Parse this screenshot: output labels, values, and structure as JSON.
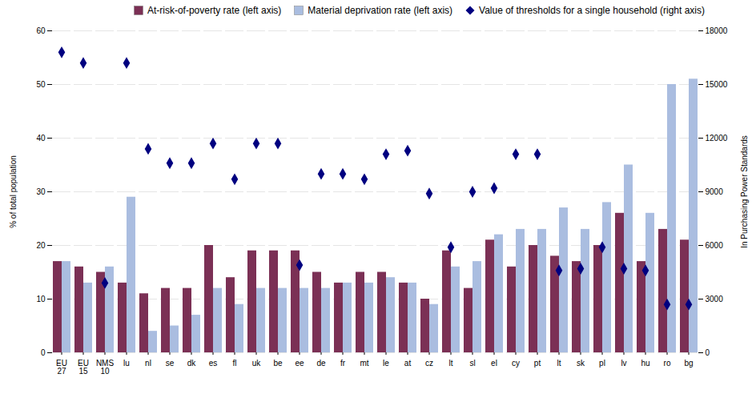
{
  "chart_data": {
    "type": "bar",
    "categories": [
      "EU\n27",
      "EU\n15",
      "NMS\n10",
      "lu",
      "nl",
      "se",
      "dk",
      "es",
      "fl",
      "uk",
      "be",
      "ee",
      "de",
      "fr",
      "mt",
      "le",
      "at",
      "cz",
      "lt",
      "sl",
      "el",
      "cy",
      "pt",
      "lt",
      "sk",
      "pl",
      "lv",
      "hu",
      "ro",
      "bg"
    ],
    "series": [
      {
        "name": "At-risk-of-poverty rate (left axis)",
        "color": "#7B3055",
        "values": [
          17,
          16,
          15,
          13,
          11,
          12,
          12,
          20,
          14,
          19,
          19,
          19,
          15,
          13,
          15,
          15,
          13,
          10,
          19,
          12,
          21,
          16,
          20,
          18,
          17,
          20,
          26,
          17,
          23,
          21
        ]
      },
      {
        "name": "Material deprivation rate (left axis)",
        "color": "#AABDE0",
        "values": [
          17,
          13,
          16,
          29,
          4,
          5,
          7,
          12,
          9,
          12,
          12,
          12,
          12,
          13,
          13,
          14,
          13,
          9,
          16,
          17,
          22,
          23,
          23,
          27,
          23,
          28,
          35,
          26,
          50,
          51
        ]
      },
      {
        "name": "Value of thresholds for a single household (right axis)",
        "color": "#000080",
        "type": "scatter",
        "marker": "diamond",
        "axis": "y2",
        "values": [
          16800,
          16200,
          3900,
          16200,
          11400,
          10600,
          10600,
          11700,
          9700,
          11700,
          11700,
          4900,
          10000,
          10000,
          9700,
          11100,
          11300,
          8900,
          5900,
          9000,
          9200,
          11100,
          11100,
          4600,
          4700,
          5900,
          4700,
          4600,
          2700,
          2700
        ]
      }
    ],
    "ylabel": "% of total population",
    "y2label": "In Purchasing Power Standards",
    "ylim": [
      0,
      60
    ],
    "yticks": [
      0,
      10,
      20,
      30,
      40,
      50,
      60
    ],
    "y2lim": [
      0,
      18000
    ],
    "y2ticks": [
      0,
      3000,
      6000,
      9000,
      12000,
      15000,
      18000
    ],
    "grid": true,
    "legend": "upper right"
  }
}
